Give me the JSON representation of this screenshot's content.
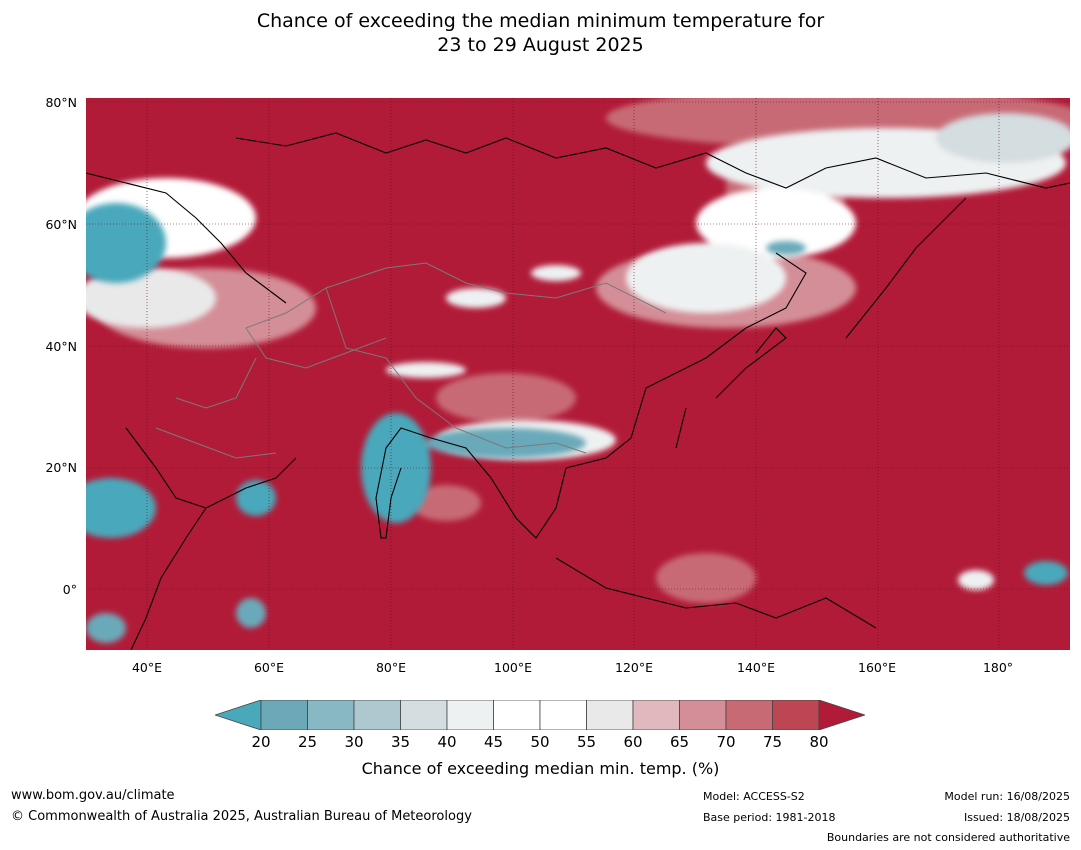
{
  "title": {
    "line1": "Chance of exceeding the median minimum temperature for",
    "line2": "23 to 29 August 2025"
  },
  "map": {
    "lat_labels": [
      "80°N",
      "60°N",
      "40°N",
      "20°N",
      "0°"
    ],
    "lon_labels": [
      "40°E",
      "60°E",
      "80°E",
      "100°E",
      "120°E",
      "140°E",
      "160°E",
      "180°"
    ],
    "dominant_color": "#b11b38"
  },
  "colorbar": {
    "ticks": [
      "20",
      "25",
      "30",
      "35",
      "40",
      "45",
      "50",
      "55",
      "60",
      "65",
      "70",
      "75",
      "80"
    ],
    "colors": [
      "#4aa8bb",
      "#6ba9b9",
      "#89b8c5",
      "#aec8cf",
      "#d4dde0",
      "#eef1f2",
      "#ffffff",
      "#ffffff",
      "#e9e9ea",
      "#e0b8bd",
      "#d48e97",
      "#c86a74",
      "#bd4653",
      "#b11b38"
    ],
    "label": "Chance of exceeding median min. temp. (%)"
  },
  "footer": {
    "url": "www.bom.gov.au/climate",
    "copyright": "© Commonwealth of Australia 2025, Australian Bureau of Meteorology",
    "model": "Model: ACCESS-S2",
    "base_period": "Base period: 1981-2018",
    "model_run": "Model run: 16/08/2025",
    "issued": "Issued: 18/08/2025",
    "boundaries": "Boundaries are not considered authoritative"
  }
}
